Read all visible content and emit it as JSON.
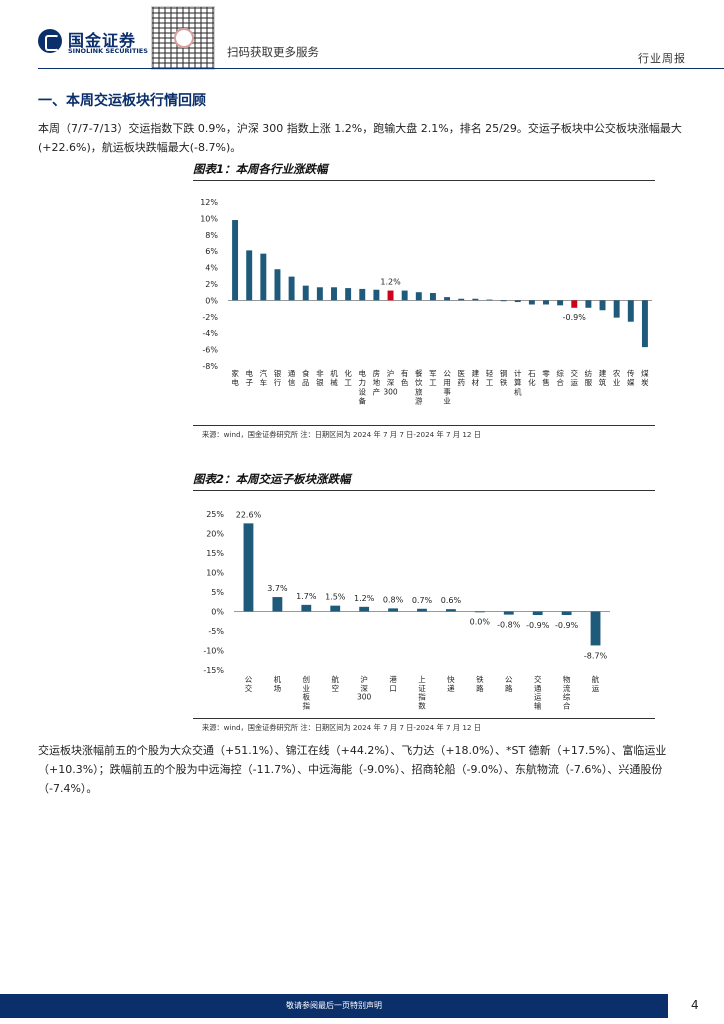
{
  "header": {
    "brand_cn": "国金证券",
    "brand_en": "SINOLINK SECURITIES",
    "scan_text": "扫码获取更多服务",
    "report_type": "行业周报"
  },
  "section": {
    "title": "一、本周交运板块行情回顾",
    "intro": "本周（7/7-7/13）交运指数下跌 0.9%，沪深 300 指数上涨 1.2%，跑输大盘 2.1%，排名 25/29。交运子板块中公交板块涨幅最大(+22.6%)，航运板块跌幅最大(-8.7%)。",
    "summary": "交运板块涨幅前五的个股为大众交通（+51.1%）、锦江在线（+44.2%）、飞力达（+18.0%）、*ST 德新（+17.5%）、富临运业（+10.3%）；跌幅前五的个股为中远海控（-11.7%）、中远海能（-9.0%）、招商轮船（-9.0%）、东航物流（-7.6%）、兴通股份（-7.4%）。"
  },
  "figure1": {
    "title": "图表1：本周各行业涨跌幅",
    "source": "来源：wind，国金证券研究所    注：日期区间为 2024 年 7 月 7 日-2024 年 7 月 12 日"
  },
  "figure2": {
    "title": "图表2：本周交运子板块涨跌幅",
    "source": "来源：wind，国金证券研究所    注：日期区间为 2024 年 7 月 7 日-2024 年 7 月 12 日"
  },
  "footer": {
    "disclaimer": "敬请参阅最后一页特别声明",
    "page": "4"
  },
  "colors": {
    "primary": "#0b2f6b",
    "bar": "#1f5a7a",
    "highlight": "#d0021b"
  },
  "chart_data": [
    {
      "type": "bar",
      "title": "图表1：本周各行业涨跌幅",
      "categories": [
        "家电",
        "电子",
        "汽车",
        "银行",
        "通信",
        "食品",
        "非银",
        "机械",
        "化工",
        "电力设备",
        "房地产",
        "沪深300",
        "有色",
        "餐饮旅游",
        "军工",
        "公用事业",
        "医药",
        "建材",
        "轻工",
        "钢铁",
        "计算机",
        "石化",
        "零售",
        "综合",
        "交运",
        "纺服",
        "建筑",
        "农业",
        "传媒",
        "煤炭"
      ],
      "values": [
        9.8,
        6.1,
        5.7,
        3.8,
        2.9,
        1.8,
        1.6,
        1.6,
        1.5,
        1.4,
        1.3,
        1.2,
        1.2,
        1.0,
        0.9,
        0.4,
        0.2,
        0.2,
        0.1,
        -0.1,
        -0.2,
        -0.5,
        -0.5,
        -0.6,
        -0.9,
        -0.9,
        -1.2,
        -2.1,
        -2.6,
        -5.7
      ],
      "highlight": [
        "沪深300",
        "交运"
      ],
      "data_labels": {
        "沪深300": "1.2%",
        "交运": "-0.9%"
      },
      "yticks": [
        "12%",
        "10%",
        "8%",
        "6%",
        "4%",
        "2%",
        "0%",
        "-2%",
        "-4%",
        "-6%",
        "-8%"
      ],
      "ylim": [
        -8,
        12
      ]
    },
    {
      "type": "bar",
      "title": "图表2：本周交运子板块涨跌幅",
      "categories": [
        "公交",
        "机场",
        "创业板指",
        "航空",
        "沪深300",
        "港口",
        "上证指数",
        "快递",
        "铁路",
        "公路",
        "交通运输",
        "物流综合",
        "航运"
      ],
      "values": [
        22.6,
        3.7,
        1.7,
        1.5,
        1.2,
        0.8,
        0.7,
        0.6,
        0.0,
        -0.8,
        -0.9,
        -0.9,
        -8.7
      ],
      "labels": [
        "22.6%",
        "3.7%",
        "1.7%",
        "1.5%",
        "1.2%",
        "0.8%",
        "0.7%",
        "0.6%",
        "0.0%",
        "-0.8%",
        "-0.9%",
        "-0.9%",
        "-8.7%"
      ],
      "yticks": [
        "25%",
        "20%",
        "15%",
        "10%",
        "5%",
        "0%",
        "-5%",
        "-10%",
        "-15%"
      ],
      "ylim": [
        -15,
        25
      ]
    }
  ]
}
